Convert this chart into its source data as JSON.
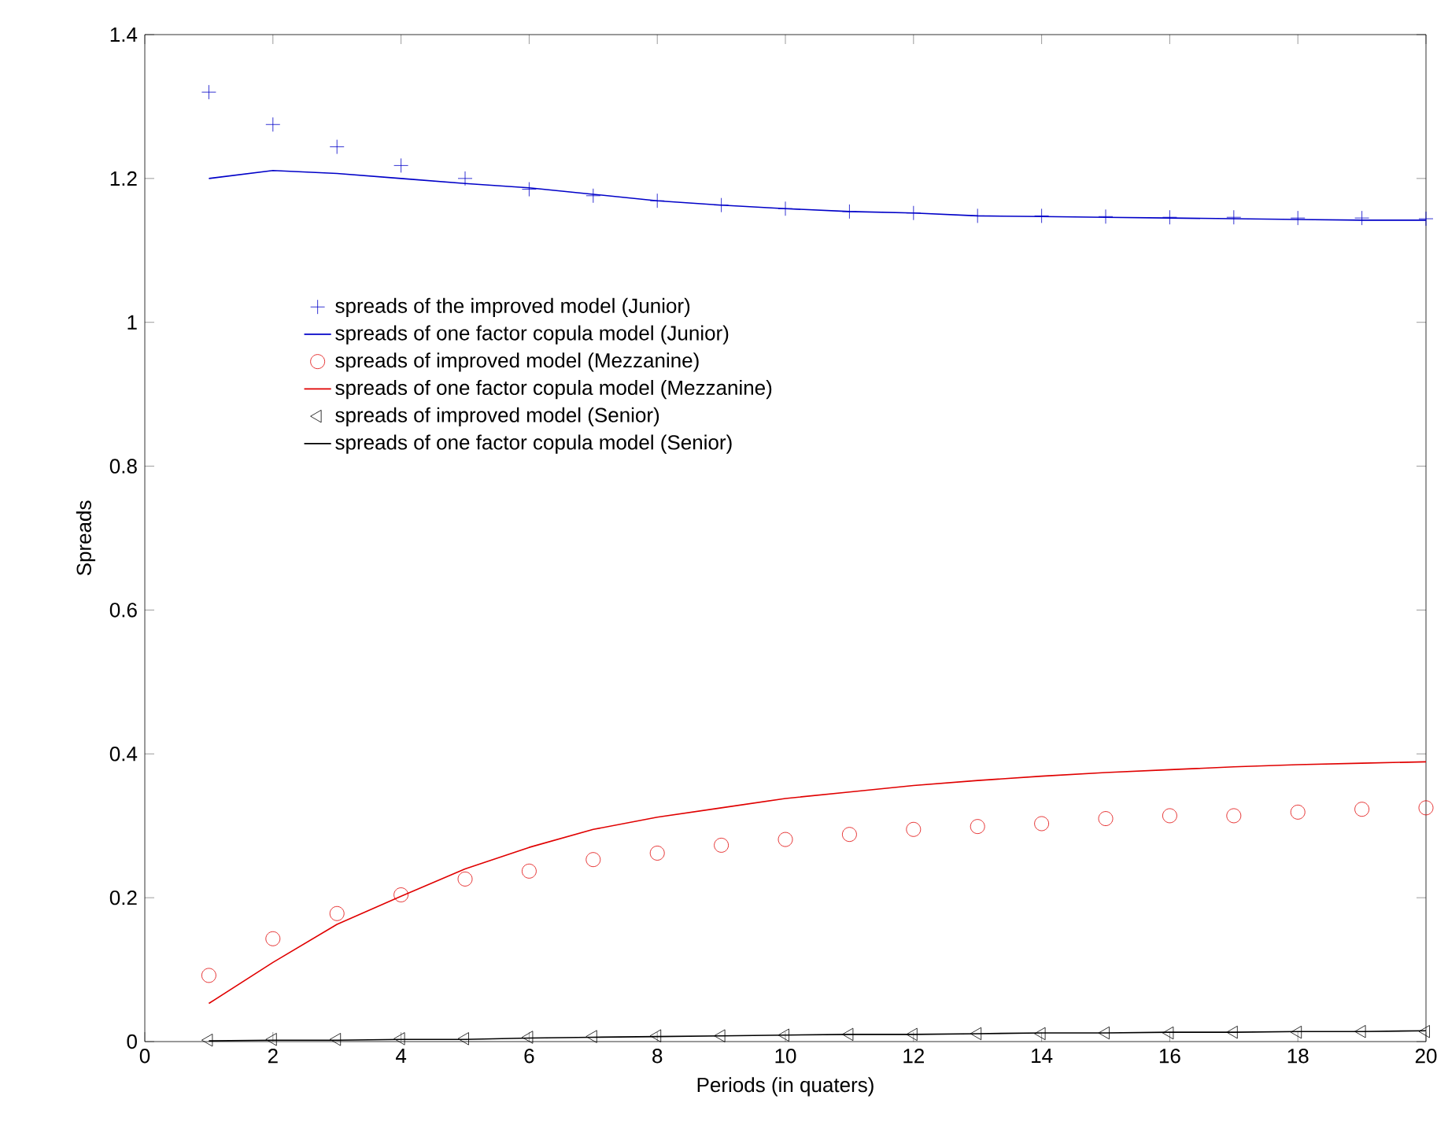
{
  "chart_data": {
    "type": "line",
    "xlabel": "Periods (in quaters)",
    "ylabel": "Spreads",
    "x": [
      1,
      2,
      3,
      4,
      5,
      6,
      7,
      8,
      9,
      10,
      11,
      12,
      13,
      14,
      15,
      16,
      17,
      18,
      19,
      20
    ],
    "xlim": [
      0,
      20
    ],
    "xticks": [
      0,
      2,
      4,
      6,
      8,
      10,
      12,
      14,
      16,
      18,
      20
    ],
    "ylim": [
      0,
      1.4
    ],
    "yticks": [
      0,
      0.2,
      0.4,
      0.6,
      0.8,
      1,
      1.2,
      1.4
    ],
    "grid": false,
    "legend": "left",
    "series": [
      {
        "name": "spreads of the improved model (Junior)",
        "type": "scatter",
        "marker": "cross",
        "color": "#0000c8",
        "values": [
          1.32,
          1.275,
          1.244,
          1.218,
          1.2,
          1.185,
          1.176,
          1.169,
          1.163,
          1.158,
          1.154,
          1.152,
          1.148,
          1.148,
          1.147,
          1.146,
          1.146,
          1.145,
          1.145,
          1.144
        ]
      },
      {
        "name": "spreads of one factor copula model (Junior)",
        "line_style": "solid",
        "color": "#0000c8",
        "values": [
          1.2,
          1.211,
          1.207,
          1.2,
          1.193,
          1.187,
          1.178,
          1.169,
          1.163,
          1.158,
          1.154,
          1.152,
          1.148,
          1.147,
          1.146,
          1.145,
          1.144,
          1.143,
          1.142,
          1.142
        ]
      },
      {
        "name": "spreads of improved model (Mezzanine)",
        "type": "scatter",
        "marker": "circle",
        "color": "#e00000",
        "values": [
          0.092,
          0.143,
          0.178,
          0.204,
          0.226,
          0.237,
          0.253,
          0.262,
          0.273,
          0.281,
          0.288,
          0.295,
          0.299,
          0.303,
          0.31,
          0.314,
          0.314,
          0.319,
          0.323,
          0.325
        ]
      },
      {
        "name": "spreads of one factor copula model (Mezzanine)",
        "line_style": "solid",
        "color": "#e00000",
        "values": [
          0.053,
          0.11,
          0.163,
          0.202,
          0.24,
          0.27,
          0.295,
          0.312,
          0.325,
          0.338,
          0.347,
          0.356,
          0.363,
          0.369,
          0.374,
          0.378,
          0.382,
          0.385,
          0.387,
          0.389
        ]
      },
      {
        "name": "spreads of improved model (Senior)",
        "type": "scatter",
        "marker": "triangle",
        "color": "#000000",
        "values": [
          0.002,
          0.003,
          0.003,
          0.004,
          0.004,
          0.006,
          0.007,
          0.008,
          0.008,
          0.009,
          0.01,
          0.01,
          0.011,
          0.011,
          0.012,
          0.012,
          0.013,
          0.013,
          0.014,
          0.014
        ]
      },
      {
        "name": "spreads of one factor copula model (Senior)",
        "line_style": "solid",
        "color": "#000000",
        "values": [
          0.001,
          0.002,
          0.002,
          0.003,
          0.003,
          0.005,
          0.006,
          0.007,
          0.008,
          0.009,
          0.01,
          0.01,
          0.011,
          0.012,
          0.012,
          0.013,
          0.013,
          0.014,
          0.014,
          0.015
        ]
      }
    ]
  }
}
